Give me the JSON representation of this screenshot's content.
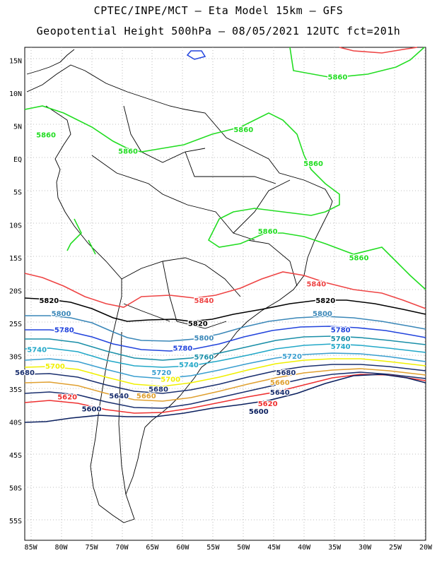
{
  "title_line1": "CPTEC/INPE/MCT –  Eta Model 15km – GFS",
  "title_line2": "Geopotential Height 500hPa – 08/05/2021 12UTC fct=201h",
  "map": {
    "lon_range": [
      -86,
      -20
    ],
    "lat_range": [
      -58,
      17
    ],
    "lat_ticks": [
      "15N",
      "10N",
      "5N",
      "EQ",
      "5S",
      "10S",
      "15S",
      "20S",
      "25S",
      "30S",
      "35S",
      "40S",
      "45S",
      "50S",
      "55S"
    ],
    "lon_ticks": [
      "85W",
      "80W",
      "75W",
      "70W",
      "65W",
      "60W",
      "55W",
      "50W",
      "45W",
      "40W",
      "35W",
      "30W",
      "25W",
      "20W"
    ],
    "contour_colors": {
      "5860": "#22dd22",
      "5840": "#ee4444",
      "5820": "#000000",
      "5800": "#3a87b8",
      "5780": "#2244dd",
      "5760": "#1a8fa8",
      "5740": "#22a8c8",
      "5720": "#3a9fd0",
      "5700": "#f0f000",
      "5680": "#1a2f6e",
      "5660": "#e0a030",
      "5640": "#1a2f6e",
      "5620": "#ee3030",
      "5600": "#0a1f5e"
    },
    "contour_labels": [
      {
        "text": "5860",
        "lon": -34.5,
        "lat": 12.5,
        "color": "#22dd22"
      },
      {
        "text": "5860",
        "lon": -50,
        "lat": 4.5,
        "color": "#22dd22"
      },
      {
        "text": "5860",
        "lon": -69,
        "lat": 1.2,
        "color": "#22dd22"
      },
      {
        "text": "5860",
        "lon": -82.5,
        "lat": 3.7,
        "color": "#22dd22"
      },
      {
        "text": "5860",
        "lon": -38.5,
        "lat": -0.7,
        "color": "#22dd22"
      },
      {
        "text": "5860",
        "lon": -46,
        "lat": -11,
        "color": "#22dd22"
      },
      {
        "text": "5860",
        "lon": -31,
        "lat": -15,
        "color": "#22dd22"
      },
      {
        "text": "5840",
        "lon": -38,
        "lat": -19,
        "color": "#ee4444"
      },
      {
        "text": "5840",
        "lon": -56.5,
        "lat": -21.5,
        "color": "#ee4444"
      },
      {
        "text": "5820",
        "lon": -82,
        "lat": -21.5,
        "color": "#000000"
      },
      {
        "text": "5820",
        "lon": -36.5,
        "lat": -21.5,
        "color": "#000000"
      },
      {
        "text": "5820",
        "lon": -57.5,
        "lat": -25,
        "color": "#000000"
      },
      {
        "text": "5800",
        "lon": -80,
        "lat": -23.5,
        "color": "#3a87b8"
      },
      {
        "text": "5800",
        "lon": -37,
        "lat": -23.5,
        "color": "#3a87b8"
      },
      {
        "text": "5800",
        "lon": -56.5,
        "lat": -27.2,
        "color": "#3a87b8"
      },
      {
        "text": "5780",
        "lon": -79.5,
        "lat": -26,
        "color": "#2244dd"
      },
      {
        "text": "5780",
        "lon": -34,
        "lat": -26,
        "color": "#2244dd"
      },
      {
        "text": "5780",
        "lon": -60,
        "lat": -28.8,
        "color": "#2244dd"
      },
      {
        "text": "5760",
        "lon": -34,
        "lat": -27.3,
        "color": "#1a8fa8"
      },
      {
        "text": "5760",
        "lon": -56.5,
        "lat": -30.1,
        "color": "#1a8fa8"
      },
      {
        "text": "5740",
        "lon": -84,
        "lat": -29,
        "color": "#22a8c8"
      },
      {
        "text": "5740",
        "lon": -34,
        "lat": -28.5,
        "color": "#22a8c8"
      },
      {
        "text": "5740",
        "lon": -59,
        "lat": -31.3,
        "color": "#22a8c8"
      },
      {
        "text": "5720",
        "lon": -42,
        "lat": -30,
        "color": "#3a9fd0"
      },
      {
        "text": "5720",
        "lon": -63.5,
        "lat": -32.5,
        "color": "#3a9fd0"
      },
      {
        "text": "5700",
        "lon": -81,
        "lat": -31.5,
        "color": "#f0f000"
      },
      {
        "text": "5700",
        "lon": -62,
        "lat": -33.5,
        "color": "#f0f000"
      },
      {
        "text": "5680",
        "lon": -86,
        "lat": -32.5,
        "color": "#1a2f6e"
      },
      {
        "text": "5680",
        "lon": -43,
        "lat": -32.5,
        "color": "#1a2f6e"
      },
      {
        "text": "5680",
        "lon": -64,
        "lat": -35,
        "color": "#1a2f6e"
      },
      {
        "text": "5660",
        "lon": -44,
        "lat": -34,
        "color": "#e0a030"
      },
      {
        "text": "5660",
        "lon": -66,
        "lat": -36,
        "color": "#e0a030"
      },
      {
        "text": "5640",
        "lon": -44,
        "lat": -35.5,
        "color": "#1a2f6e"
      },
      {
        "text": "5640",
        "lon": -70.5,
        "lat": -36,
        "color": "#1a2f6e"
      },
      {
        "text": "5620",
        "lon": -79,
        "lat": -36.2,
        "color": "#ee3030"
      },
      {
        "text": "5620",
        "lon": -46,
        "lat": -37.2,
        "color": "#ee3030"
      },
      {
        "text": "5600",
        "lon": -75,
        "lat": -38,
        "color": "#0a1f5e"
      },
      {
        "text": "5600",
        "lon": -47.5,
        "lat": -38.4,
        "color": "#0a1f5e"
      }
    ]
  }
}
